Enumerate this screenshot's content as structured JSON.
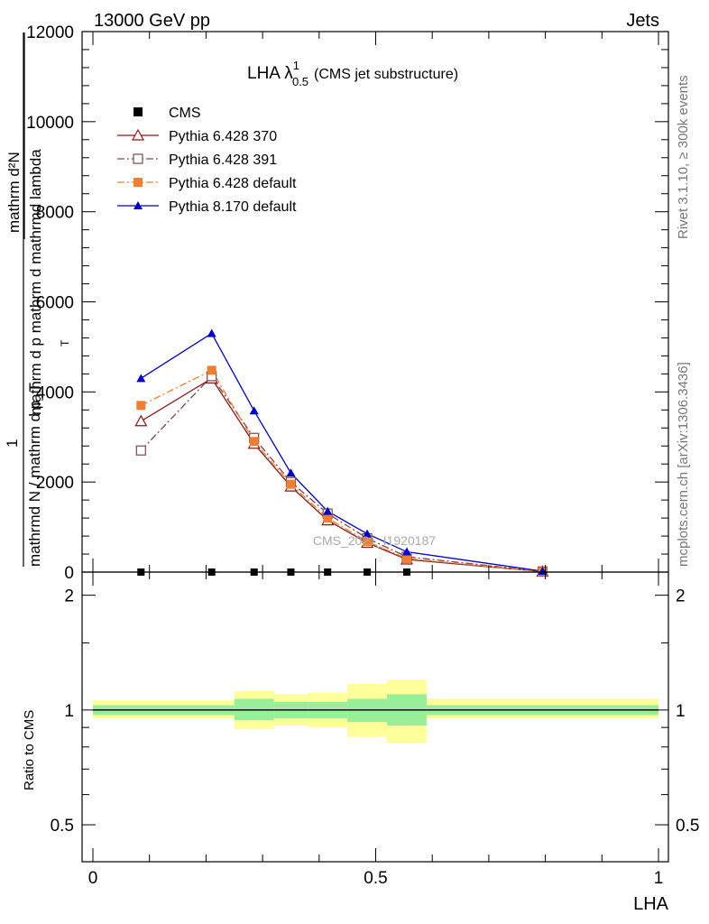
{
  "header": {
    "left": "13000 GeV pp",
    "right": "Jets"
  },
  "side_labels": {
    "rivet": "Rivet 3.1.10, ≥ 300k events",
    "mcplots": "mcplots.cern.ch [arXiv:1306.3436]"
  },
  "watermark": "CMS_2021_I1920187",
  "chart_data": [
    {
      "type": "line",
      "title": {
        "main": "LHA λ",
        "sup": "1",
        "sub": "0.5",
        "suffix": "(CMS jet substructure)"
      },
      "ylabel": {
        "top": "mathrm d²N",
        "mid": "mathrm d p mathrm d mathrmd lambda",
        "sub": "T",
        "num": "1",
        "bottom": "mathrmd N / mathrm d p_T"
      },
      "xlim": [
        0,
        1
      ],
      "ylim": [
        0,
        12000
      ],
      "yticks": [
        0,
        2000,
        4000,
        6000,
        8000,
        10000,
        12000
      ],
      "ytick_labels": [
        "0",
        "2000",
        "4000",
        "6000",
        "8000",
        "10000",
        "12000"
      ],
      "legend_position": "top-left",
      "series": [
        {
          "name": "CMS",
          "color": "#000000",
          "marker": "square-filled",
          "line": "none",
          "x": [
            0.085,
            0.21,
            0.285,
            0.35,
            0.415,
            0.485,
            0.555,
            0.795
          ],
          "y": [
            0,
            0,
            0,
            0,
            0,
            0,
            0,
            0
          ]
        },
        {
          "name": "Pythia 6.428 370",
          "color": "#8b1a1a",
          "marker": "triangle-open",
          "line": "solid",
          "x": [
            0.085,
            0.21,
            0.285,
            0.35,
            0.415,
            0.485,
            0.555,
            0.795
          ],
          "y": [
            3350,
            4300,
            2850,
            1900,
            1150,
            650,
            280,
            10
          ]
        },
        {
          "name": "Pythia 6.428 391",
          "color": "#7a4a4a",
          "marker": "square-open",
          "line": "dashdot",
          "x": [
            0.085,
            0.21,
            0.285,
            0.35,
            0.415,
            0.485,
            0.555,
            0.795
          ],
          "y": [
            2700,
            4350,
            2980,
            2000,
            1300,
            750,
            340,
            15
          ]
        },
        {
          "name": "Pythia 6.428 default",
          "color": "#f08030",
          "marker": "square-filled",
          "line": "dashdot",
          "x": [
            0.085,
            0.21,
            0.285,
            0.35,
            0.415,
            0.485,
            0.555,
            0.795
          ],
          "y": [
            3700,
            4480,
            2900,
            1950,
            1200,
            680,
            300,
            12
          ]
        },
        {
          "name": "Pythia 8.170 default",
          "color": "#0000cc",
          "marker": "triangle-filled",
          "line": "solid",
          "x": [
            0.085,
            0.21,
            0.285,
            0.35,
            0.415,
            0.485,
            0.555,
            0.795
          ],
          "y": [
            4300,
            5300,
            3580,
            2200,
            1350,
            850,
            450,
            20
          ]
        }
      ]
    },
    {
      "type": "area",
      "ylabel": "Ratio to CMS",
      "xlabel": "LHA",
      "xlim": [
        0,
        1
      ],
      "ylim": [
        0.4,
        2.3
      ],
      "log_y": true,
      "yticks": [
        0.5,
        1,
        2
      ],
      "ytick_labels": [
        "0.5",
        "1",
        "2"
      ],
      "xticks": [
        0,
        0.5,
        1
      ],
      "xtick_labels": [
        "0",
        "0.5",
        "1"
      ],
      "reference_line": 1,
      "bands": [
        {
          "x0": 0.0,
          "x1": 0.25,
          "inner": [
            0.97,
            1.03
          ],
          "outer": [
            0.95,
            1.06
          ]
        },
        {
          "x0": 0.25,
          "x1": 0.32,
          "inner": [
            0.94,
            1.07
          ],
          "outer": [
            0.89,
            1.12
          ]
        },
        {
          "x0": 0.32,
          "x1": 0.38,
          "inner": [
            0.95,
            1.05
          ],
          "outer": [
            0.91,
            1.1
          ]
        },
        {
          "x0": 0.38,
          "x1": 0.45,
          "inner": [
            0.95,
            1.05
          ],
          "outer": [
            0.9,
            1.11
          ]
        },
        {
          "x0": 0.45,
          "x1": 0.52,
          "inner": [
            0.93,
            1.07
          ],
          "outer": [
            0.85,
            1.17
          ]
        },
        {
          "x0": 0.52,
          "x1": 0.59,
          "inner": [
            0.91,
            1.1
          ],
          "outer": [
            0.82,
            1.2
          ]
        },
        {
          "x0": 0.59,
          "x1": 1.0,
          "inner": [
            0.97,
            1.03
          ],
          "outer": [
            0.95,
            1.07
          ]
        }
      ]
    }
  ]
}
